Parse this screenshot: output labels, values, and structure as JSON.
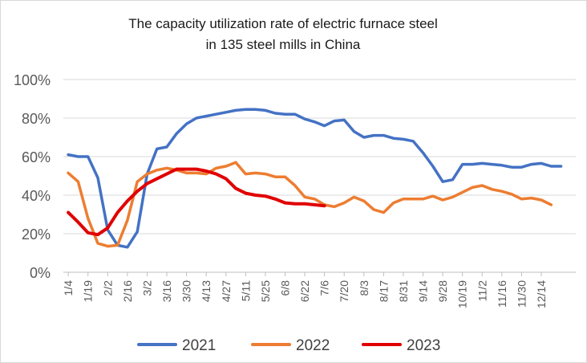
{
  "chart_data": {
    "type": "line",
    "title_lines": [
      "The capacity utilization rate of electric furnace steel",
      "in 135 steel mills in China"
    ],
    "xlabel": "",
    "ylabel": "",
    "x_tick_labels": [
      "1/4",
      "1/19",
      "2/2",
      "2/16",
      "3/2",
      "3/16",
      "3/30",
      "4/13",
      "4/27",
      "5/11",
      "5/25",
      "6/8",
      "6/22",
      "7/6",
      "7/20",
      "8/3",
      "8/17",
      "8/31",
      "9/14",
      "9/28",
      "10/19",
      "11/2",
      "11/16",
      "11/30",
      "12/14"
    ],
    "y_tick_labels": [
      "0%",
      "20%",
      "40%",
      "60%",
      "80%",
      "100%"
    ],
    "ylim": [
      0,
      100
    ],
    "grid": "horizontal",
    "legend_position": "bottom",
    "series": [
      {
        "name": "2021",
        "color": "#4472C4",
        "values": [
          61,
          60,
          60,
          49,
          22,
          14,
          13,
          21,
          51,
          64,
          65,
          72,
          77,
          80,
          81,
          82,
          83,
          84,
          84.5,
          84.5,
          84,
          82.5,
          82,
          82,
          79.5,
          78,
          76,
          78.5,
          79,
          73,
          70,
          71,
          71,
          69.5,
          69,
          68,
          62,
          55,
          47,
          48,
          56,
          56,
          56.5,
          56,
          55.5,
          54.5,
          54.5,
          56,
          56.5,
          55,
          55
        ]
      },
      {
        "name": "2022",
        "color": "#ED7D31",
        "values": [
          51.5,
          47,
          28,
          15,
          13.5,
          14,
          27,
          47,
          51,
          53,
          54,
          53,
          51.5,
          51.5,
          51,
          54,
          55,
          57,
          51,
          51.5,
          51,
          49.5,
          49.5,
          45,
          39,
          38,
          35,
          34,
          36,
          39,
          37,
          32.5,
          31,
          36,
          38,
          38,
          38,
          39.5,
          37.5,
          39,
          41.5,
          44,
          45,
          43,
          42,
          40.5,
          38,
          38.5,
          37.5,
          35
        ]
      },
      {
        "name": "2023",
        "color": "#E00000",
        "values": [
          31,
          26,
          20.5,
          19.5,
          23,
          31,
          37,
          42,
          46,
          48.5,
          51,
          53.5,
          53.5,
          53.5,
          52.5,
          51,
          48.5,
          43.5,
          41,
          40,
          39.5,
          38,
          36,
          35.5,
          35.5,
          35,
          34.5
        ]
      }
    ]
  }
}
